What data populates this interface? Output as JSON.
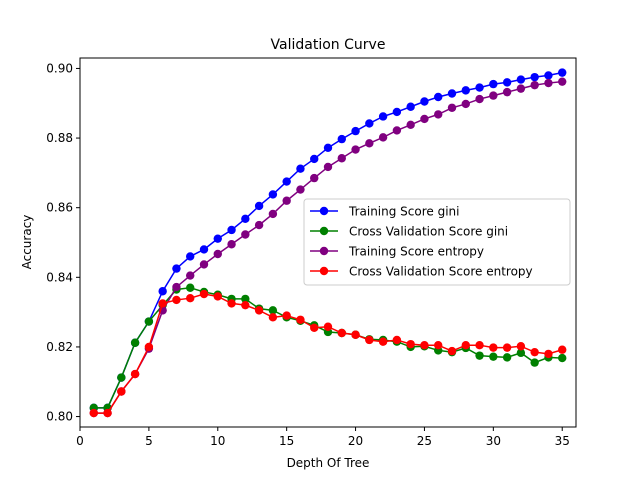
{
  "chart_data": {
    "type": "line",
    "title": "Validation Curve",
    "xlabel": "Depth Of Tree",
    "ylabel": "Accuracy",
    "xlim": [
      0,
      36
    ],
    "ylim": [
      0.797,
      0.903
    ],
    "xticks": [
      0,
      5,
      10,
      15,
      20,
      25,
      30,
      35
    ],
    "yticks": [
      0.8,
      0.82,
      0.84,
      0.86,
      0.88,
      0.9
    ],
    "xtick_labels": [
      "0",
      "5",
      "10",
      "15",
      "20",
      "25",
      "30",
      "35"
    ],
    "ytick_labels": [
      "0.80",
      "0.82",
      "0.84",
      "0.86",
      "0.88",
      "0.90"
    ],
    "grid": false,
    "legend_position": "center-right",
    "x": [
      1,
      2,
      3,
      4,
      5,
      6,
      7,
      8,
      9,
      10,
      11,
      12,
      13,
      14,
      15,
      16,
      17,
      18,
      19,
      20,
      21,
      22,
      23,
      24,
      25,
      26,
      27,
      28,
      29,
      30,
      31,
      32,
      33,
      34,
      35
    ],
    "series": [
      {
        "name": "Training Score gini",
        "color": "#0000ff",
        "values": [
          0.8025,
          0.8025,
          0.8112,
          0.8212,
          0.8273,
          0.836,
          0.8425,
          0.846,
          0.848,
          0.8511,
          0.8536,
          0.8568,
          0.8605,
          0.8638,
          0.8675,
          0.8712,
          0.874,
          0.8772,
          0.8797,
          0.882,
          0.8842,
          0.8862,
          0.8875,
          0.889,
          0.8905,
          0.8918,
          0.8928,
          0.8937,
          0.8945,
          0.8955,
          0.896,
          0.8968,
          0.8975,
          0.898,
          0.8988
        ]
      },
      {
        "name": "Cross Validation Score gini",
        "color": "#008000",
        "values": [
          0.8025,
          0.8025,
          0.8112,
          0.8212,
          0.8273,
          0.832,
          0.8365,
          0.837,
          0.8358,
          0.835,
          0.8338,
          0.8338,
          0.831,
          0.8305,
          0.8285,
          0.8275,
          0.8262,
          0.8243,
          0.824,
          0.8235,
          0.8222,
          0.822,
          0.8215,
          0.82,
          0.8202,
          0.819,
          0.8185,
          0.8197,
          0.8175,
          0.8172,
          0.817,
          0.8183,
          0.8155,
          0.817,
          0.8168
        ]
      },
      {
        "name": "Training Score entropy",
        "color": "#800080",
        "values": [
          0.801,
          0.801,
          0.8072,
          0.8122,
          0.8195,
          0.8305,
          0.8372,
          0.8405,
          0.8437,
          0.8467,
          0.8495,
          0.8523,
          0.855,
          0.8582,
          0.862,
          0.8652,
          0.8685,
          0.8717,
          0.8742,
          0.8767,
          0.8785,
          0.8802,
          0.8822,
          0.8838,
          0.8855,
          0.8868,
          0.8887,
          0.8898,
          0.8912,
          0.8922,
          0.8932,
          0.8942,
          0.8952,
          0.8958,
          0.8962
        ]
      },
      {
        "name": "Cross Validation Score entropy",
        "color": "#ff0000",
        "values": [
          0.801,
          0.801,
          0.8072,
          0.8122,
          0.82,
          0.8325,
          0.8335,
          0.834,
          0.8352,
          0.8345,
          0.8325,
          0.832,
          0.8305,
          0.8285,
          0.829,
          0.8278,
          0.8255,
          0.8258,
          0.824,
          0.8235,
          0.822,
          0.8215,
          0.822,
          0.8208,
          0.8205,
          0.8205,
          0.8188,
          0.8205,
          0.8205,
          0.8198,
          0.8198,
          0.8202,
          0.8185,
          0.818,
          0.8192
        ]
      }
    ]
  }
}
